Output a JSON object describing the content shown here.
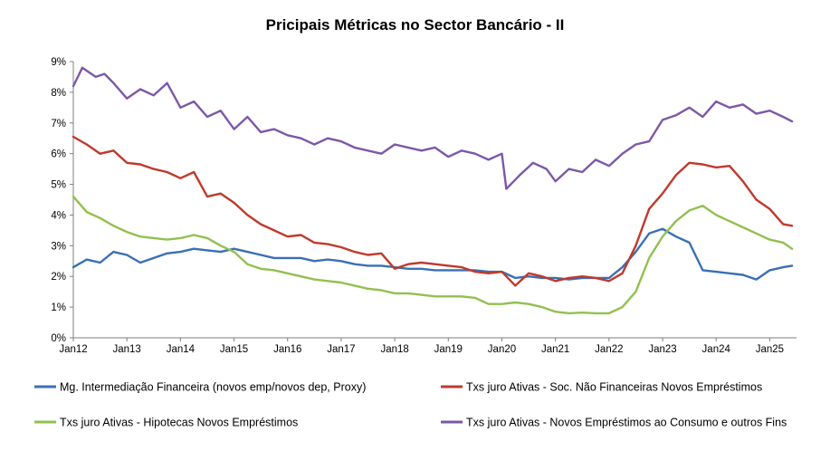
{
  "chart_data": {
    "type": "line",
    "title": "Pricipais Métricas no Sector Bancário - II",
    "xlabel": "",
    "ylabel": "",
    "x_ticks": [
      "Jan12",
      "Jan13",
      "Jan14",
      "Jan15",
      "Jan16",
      "Jan17",
      "Jan18",
      "Jan19",
      "Jan20",
      "Jan21",
      "Jan22",
      "Jan23",
      "Jan24",
      "Jan25"
    ],
    "y_ticks": [
      "0%",
      "1%",
      "2%",
      "3%",
      "4%",
      "5%",
      "6%",
      "7%",
      "8%",
      "9%"
    ],
    "ylim": [
      0,
      9
    ],
    "xlim": [
      "2012-01",
      "2025-07"
    ],
    "grid": false,
    "legend_position": "bottom",
    "series": [
      {
        "name": "Mg. Intermediação Financeira (novos emp/novos dep, Proxy)",
        "color": "#3A6FB5",
        "points": [
          [
            "2012-01",
            2.3
          ],
          [
            "2012-04",
            2.55
          ],
          [
            "2012-07",
            2.45
          ],
          [
            "2012-10",
            2.8
          ],
          [
            "2013-01",
            2.7
          ],
          [
            "2013-04",
            2.45
          ],
          [
            "2013-07",
            2.6
          ],
          [
            "2013-10",
            2.75
          ],
          [
            "2014-01",
            2.8
          ],
          [
            "2014-04",
            2.9
          ],
          [
            "2014-07",
            2.85
          ],
          [
            "2014-10",
            2.8
          ],
          [
            "2015-01",
            2.9
          ],
          [
            "2015-04",
            2.8
          ],
          [
            "2015-07",
            2.7
          ],
          [
            "2015-10",
            2.6
          ],
          [
            "2016-01",
            2.6
          ],
          [
            "2016-04",
            2.6
          ],
          [
            "2016-07",
            2.5
          ],
          [
            "2016-10",
            2.55
          ],
          [
            "2017-01",
            2.5
          ],
          [
            "2017-04",
            2.4
          ],
          [
            "2017-07",
            2.35
          ],
          [
            "2017-10",
            2.35
          ],
          [
            "2018-01",
            2.3
          ],
          [
            "2018-04",
            2.25
          ],
          [
            "2018-07",
            2.25
          ],
          [
            "2018-10",
            2.2
          ],
          [
            "2019-01",
            2.2
          ],
          [
            "2019-04",
            2.2
          ],
          [
            "2019-07",
            2.2
          ],
          [
            "2019-10",
            2.15
          ],
          [
            "2020-01",
            2.15
          ],
          [
            "2020-04",
            1.95
          ],
          [
            "2020-07",
            2.0
          ],
          [
            "2020-10",
            1.95
          ],
          [
            "2021-01",
            1.95
          ],
          [
            "2021-04",
            1.9
          ],
          [
            "2021-07",
            1.95
          ],
          [
            "2021-10",
            1.95
          ],
          [
            "2022-01",
            1.95
          ],
          [
            "2022-04",
            2.3
          ],
          [
            "2022-07",
            2.8
          ],
          [
            "2022-10",
            3.4
          ],
          [
            "2023-01",
            3.55
          ],
          [
            "2023-04",
            3.3
          ],
          [
            "2023-07",
            3.1
          ],
          [
            "2023-10",
            2.2
          ],
          [
            "2024-01",
            2.15
          ],
          [
            "2024-04",
            2.1
          ],
          [
            "2024-07",
            2.05
          ],
          [
            "2024-10",
            1.9
          ],
          [
            "2025-01",
            2.2
          ],
          [
            "2025-04",
            2.3
          ],
          [
            "2025-06",
            2.35
          ]
        ]
      },
      {
        "name": "Txs juro Ativas - Soc. Não Financeiras Novos Empréstimos",
        "color": "#C0392B",
        "points": [
          [
            "2012-01",
            6.55
          ],
          [
            "2012-04",
            6.3
          ],
          [
            "2012-07",
            6.0
          ],
          [
            "2012-10",
            6.1
          ],
          [
            "2013-01",
            5.7
          ],
          [
            "2013-04",
            5.65
          ],
          [
            "2013-07",
            5.5
          ],
          [
            "2013-10",
            5.4
          ],
          [
            "2014-01",
            5.2
          ],
          [
            "2014-04",
            5.4
          ],
          [
            "2014-07",
            4.6
          ],
          [
            "2014-10",
            4.7
          ],
          [
            "2015-01",
            4.4
          ],
          [
            "2015-04",
            4.0
          ],
          [
            "2015-07",
            3.7
          ],
          [
            "2015-10",
            3.5
          ],
          [
            "2016-01",
            3.3
          ],
          [
            "2016-04",
            3.35
          ],
          [
            "2016-07",
            3.1
          ],
          [
            "2016-10",
            3.05
          ],
          [
            "2017-01",
            2.95
          ],
          [
            "2017-04",
            2.8
          ],
          [
            "2017-07",
            2.7
          ],
          [
            "2017-10",
            2.75
          ],
          [
            "2018-01",
            2.25
          ],
          [
            "2018-04",
            2.4
          ],
          [
            "2018-07",
            2.45
          ],
          [
            "2018-10",
            2.4
          ],
          [
            "2019-01",
            2.35
          ],
          [
            "2019-04",
            2.3
          ],
          [
            "2019-07",
            2.15
          ],
          [
            "2019-10",
            2.1
          ],
          [
            "2020-01",
            2.15
          ],
          [
            "2020-04",
            1.7
          ],
          [
            "2020-07",
            2.1
          ],
          [
            "2020-10",
            2.0
          ],
          [
            "2021-01",
            1.85
          ],
          [
            "2021-04",
            1.95
          ],
          [
            "2021-07",
            2.0
          ],
          [
            "2021-10",
            1.95
          ],
          [
            "2022-01",
            1.85
          ],
          [
            "2022-04",
            2.1
          ],
          [
            "2022-07",
            3.0
          ],
          [
            "2022-10",
            4.2
          ],
          [
            "2023-01",
            4.7
          ],
          [
            "2023-04",
            5.3
          ],
          [
            "2023-07",
            5.7
          ],
          [
            "2023-10",
            5.65
          ],
          [
            "2024-01",
            5.55
          ],
          [
            "2024-04",
            5.6
          ],
          [
            "2024-07",
            5.1
          ],
          [
            "2024-10",
            4.5
          ],
          [
            "2025-01",
            4.2
          ],
          [
            "2025-04",
            3.7
          ],
          [
            "2025-06",
            3.65
          ]
        ]
      },
      {
        "name": "Txs juro Ativas - Hipotecas Novos Empréstimos",
        "color": "#92C050",
        "points": [
          [
            "2012-01",
            4.6
          ],
          [
            "2012-04",
            4.1
          ],
          [
            "2012-07",
            3.9
          ],
          [
            "2012-10",
            3.65
          ],
          [
            "2013-01",
            3.45
          ],
          [
            "2013-04",
            3.3
          ],
          [
            "2013-07",
            3.25
          ],
          [
            "2013-10",
            3.2
          ],
          [
            "2014-01",
            3.25
          ],
          [
            "2014-04",
            3.35
          ],
          [
            "2014-07",
            3.25
          ],
          [
            "2014-10",
            3.0
          ],
          [
            "2015-01",
            2.8
          ],
          [
            "2015-04",
            2.4
          ],
          [
            "2015-07",
            2.25
          ],
          [
            "2015-10",
            2.2
          ],
          [
            "2016-01",
            2.1
          ],
          [
            "2016-04",
            2.0
          ],
          [
            "2016-07",
            1.9
          ],
          [
            "2016-10",
            1.85
          ],
          [
            "2017-01",
            1.8
          ],
          [
            "2017-04",
            1.7
          ],
          [
            "2017-07",
            1.6
          ],
          [
            "2017-10",
            1.55
          ],
          [
            "2018-01",
            1.45
          ],
          [
            "2018-04",
            1.45
          ],
          [
            "2018-07",
            1.4
          ],
          [
            "2018-10",
            1.35
          ],
          [
            "2019-01",
            1.35
          ],
          [
            "2019-04",
            1.35
          ],
          [
            "2019-07",
            1.3
          ],
          [
            "2019-10",
            1.1
          ],
          [
            "2020-01",
            1.1
          ],
          [
            "2020-04",
            1.15
          ],
          [
            "2020-07",
            1.1
          ],
          [
            "2020-10",
            1.0
          ],
          [
            "2021-01",
            0.85
          ],
          [
            "2021-04",
            0.8
          ],
          [
            "2021-07",
            0.82
          ],
          [
            "2021-10",
            0.8
          ],
          [
            "2022-01",
            0.8
          ],
          [
            "2022-04",
            1.0
          ],
          [
            "2022-07",
            1.5
          ],
          [
            "2022-10",
            2.6
          ],
          [
            "2023-01",
            3.3
          ],
          [
            "2023-04",
            3.8
          ],
          [
            "2023-07",
            4.15
          ],
          [
            "2023-10",
            4.3
          ],
          [
            "2024-01",
            4.0
          ],
          [
            "2024-04",
            3.8
          ],
          [
            "2024-07",
            3.6
          ],
          [
            "2024-10",
            3.4
          ],
          [
            "2025-01",
            3.2
          ],
          [
            "2025-04",
            3.1
          ],
          [
            "2025-06",
            2.9
          ]
        ]
      },
      {
        "name": "Txs juro Ativas - Novos Empréstimos ao Consumo e outros Fins",
        "color": "#7E57A8",
        "points": [
          [
            "2012-01",
            8.2
          ],
          [
            "2012-03",
            8.8
          ],
          [
            "2012-06",
            8.5
          ],
          [
            "2012-08",
            8.6
          ],
          [
            "2012-10",
            8.3
          ],
          [
            "2013-01",
            7.8
          ],
          [
            "2013-04",
            8.1
          ],
          [
            "2013-07",
            7.9
          ],
          [
            "2013-10",
            8.3
          ],
          [
            "2014-01",
            7.5
          ],
          [
            "2014-04",
            7.7
          ],
          [
            "2014-07",
            7.2
          ],
          [
            "2014-10",
            7.4
          ],
          [
            "2015-01",
            6.8
          ],
          [
            "2015-04",
            7.2
          ],
          [
            "2015-07",
            6.7
          ],
          [
            "2015-10",
            6.8
          ],
          [
            "2016-01",
            6.6
          ],
          [
            "2016-04",
            6.5
          ],
          [
            "2016-07",
            6.3
          ],
          [
            "2016-10",
            6.5
          ],
          [
            "2017-01",
            6.4
          ],
          [
            "2017-04",
            6.2
          ],
          [
            "2017-07",
            6.1
          ],
          [
            "2017-10",
            6.0
          ],
          [
            "2018-01",
            6.3
          ],
          [
            "2018-04",
            6.2
          ],
          [
            "2018-07",
            6.1
          ],
          [
            "2018-10",
            6.2
          ],
          [
            "2019-01",
            5.9
          ],
          [
            "2019-04",
            6.1
          ],
          [
            "2019-07",
            6.0
          ],
          [
            "2019-10",
            5.8
          ],
          [
            "2020-01",
            6.0
          ],
          [
            "2020-02",
            4.85
          ],
          [
            "2020-05",
            5.3
          ],
          [
            "2020-08",
            5.7
          ],
          [
            "2020-11",
            5.5
          ],
          [
            "2021-01",
            5.1
          ],
          [
            "2021-04",
            5.5
          ],
          [
            "2021-07",
            5.4
          ],
          [
            "2021-10",
            5.8
          ],
          [
            "2022-01",
            5.6
          ],
          [
            "2022-04",
            6.0
          ],
          [
            "2022-07",
            6.3
          ],
          [
            "2022-10",
            6.4
          ],
          [
            "2023-01",
            7.1
          ],
          [
            "2023-04",
            7.25
          ],
          [
            "2023-07",
            7.5
          ],
          [
            "2023-10",
            7.2
          ],
          [
            "2024-01",
            7.7
          ],
          [
            "2024-04",
            7.5
          ],
          [
            "2024-07",
            7.6
          ],
          [
            "2024-10",
            7.3
          ],
          [
            "2025-01",
            7.4
          ],
          [
            "2025-04",
            7.2
          ],
          [
            "2025-06",
            7.05
          ]
        ]
      }
    ]
  }
}
